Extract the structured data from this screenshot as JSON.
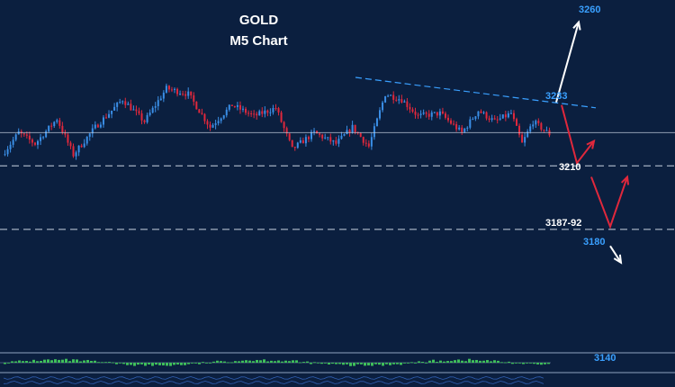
{
  "chart_data": {
    "type": "candlestick",
    "title": "GOLD",
    "subtitle": "M5 Chart",
    "colors": {
      "background": "#0b1f3f",
      "bull": "#3a8ee6",
      "bear": "#e0283c",
      "levels": "#c8d2e0",
      "trendline": "#3aa0ff",
      "white_label": "#ffffff",
      "blue_label": "#3aa0ff",
      "projection_red": "#e0283c",
      "projection_white": "#ffffff",
      "oscillator": "#3fbf5a"
    },
    "price_range": [
      3130,
      3270
    ],
    "start_price": 3214,
    "end_price": 3221.5,
    "high_price": 3236,
    "low_price": 3202,
    "last_price": 3221.5,
    "levels": [
      {
        "value": 3222,
        "label": ""
      },
      {
        "value": 3210,
        "label": "3210"
      },
      {
        "value": 3187,
        "label": "3187-92"
      }
    ],
    "annotations": [
      {
        "text": "3260",
        "price": 3266,
        "color": "blue"
      },
      {
        "text": "3233",
        "price": 3235,
        "color": "blue"
      },
      {
        "text": "3210",
        "price": 3209,
        "color": "white"
      },
      {
        "text": "3187-92",
        "price": 3189,
        "color": "white"
      },
      {
        "text": "3180",
        "price": 3182,
        "color": "blue"
      },
      {
        "text": "3140",
        "price": 3140,
        "color": "blue"
      }
    ],
    "trendline": {
      "from_price": 3242,
      "to_price": 3231
    },
    "projections": [
      {
        "color": "red",
        "points": [
          3232,
          3211,
          3219
        ]
      },
      {
        "color": "red",
        "points": [
          3206,
          3188,
          3206
        ]
      },
      {
        "color": "white",
        "points": [
          3233,
          3262
        ]
      },
      {
        "color": "white",
        "points": [
          3181,
          3175
        ]
      }
    ],
    "path": [
      [
        0,
        3214
      ],
      [
        0.03,
        3222
      ],
      [
        0.06,
        3218
      ],
      [
        0.1,
        3227
      ],
      [
        0.13,
        3214
      ],
      [
        0.17,
        3224
      ],
      [
        0.22,
        3234
      ],
      [
        0.26,
        3226
      ],
      [
        0.3,
        3238
      ],
      [
        0.34,
        3236
      ],
      [
        0.38,
        3224
      ],
      [
        0.42,
        3232
      ],
      [
        0.46,
        3228
      ],
      [
        0.5,
        3231
      ],
      [
        0.53,
        3216
      ],
      [
        0.57,
        3222
      ],
      [
        0.61,
        3218
      ],
      [
        0.64,
        3224
      ],
      [
        0.67,
        3217
      ],
      [
        0.7,
        3236
      ],
      [
        0.73,
        3234
      ],
      [
        0.76,
        3228
      ],
      [
        0.8,
        3229
      ],
      [
        0.84,
        3222
      ],
      [
        0.87,
        3230
      ],
      [
        0.9,
        3226
      ],
      [
        0.93,
        3229
      ],
      [
        0.95,
        3218
      ],
      [
        0.97,
        3226
      ],
      [
        1.0,
        3221.5
      ]
    ]
  }
}
